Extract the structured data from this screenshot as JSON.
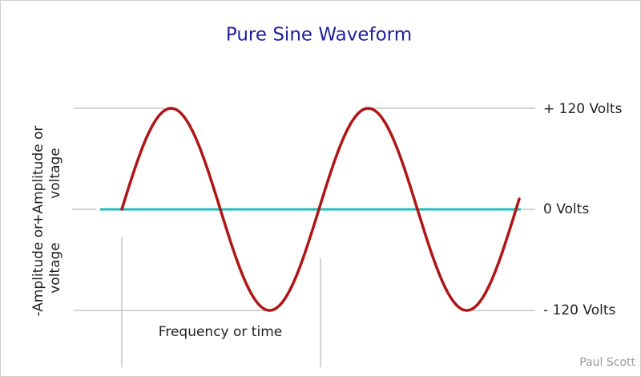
{
  "title": "Pure Sine Waveform",
  "axis_labels": {
    "positive_amplitude": [
      "+Amplitude or",
      "voltage"
    ],
    "negative_amplitude": [
      "-Amplitude or",
      "voltage"
    ],
    "time": "Frequency or time"
  },
  "levels": {
    "top": "+ 120 Volts",
    "zero": "0 Volts",
    "bottom": "- 120 Volts"
  },
  "credit": "Paul Scott"
}
